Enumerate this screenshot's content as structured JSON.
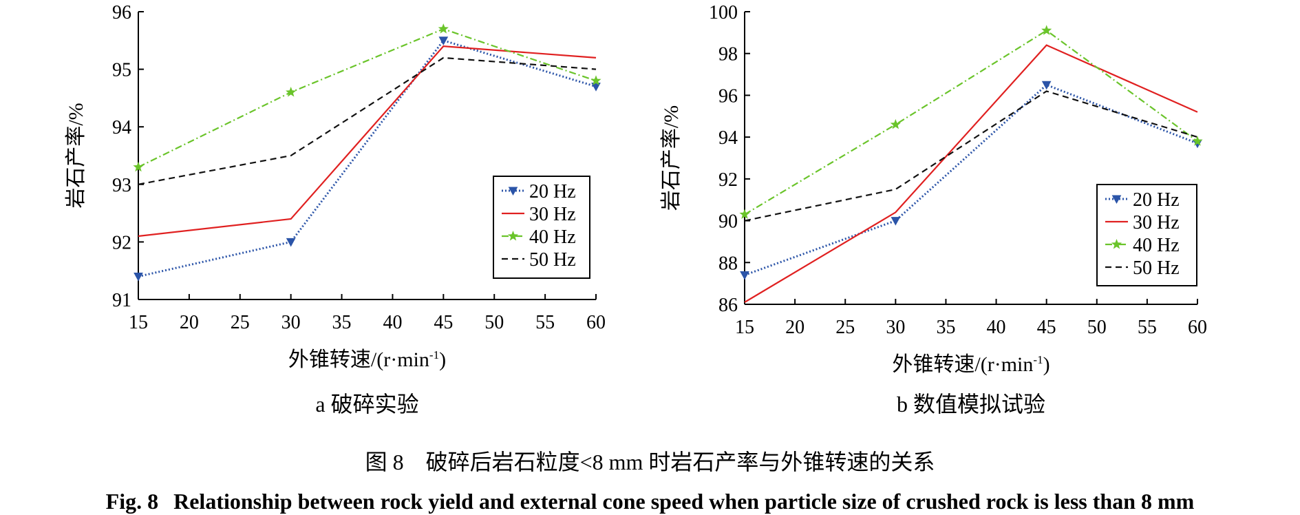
{
  "chart_data": [
    {
      "type": "line",
      "sublabel": "a  破碎实验",
      "xlabel": "外锥转速/(r·min",
      "xlabel_sup": "-1",
      "xlabel_end": ")",
      "ylabel": "岩石产率/%",
      "xlim": [
        15,
        60
      ],
      "ylim": [
        91,
        96
      ],
      "xticks": [
        15,
        20,
        25,
        30,
        35,
        40,
        45,
        50,
        55,
        60
      ],
      "yticks": [
        91,
        92,
        93,
        94,
        95,
        96
      ],
      "legend_position": "bottom-right",
      "grid": false,
      "x": [
        15,
        30,
        45,
        60
      ],
      "series": [
        {
          "name": "20 Hz",
          "color": "#2b54a8",
          "dash": "dotted",
          "marker": "triangle-down",
          "values": [
            91.4,
            92.0,
            95.5,
            94.7
          ]
        },
        {
          "name": "30 Hz",
          "color": "#e02020",
          "dash": "solid",
          "marker": "none",
          "values": [
            92.1,
            92.4,
            95.4,
            95.2
          ]
        },
        {
          "name": "40 Hz",
          "color": "#6ac42a",
          "dash": "dashdot",
          "marker": "star",
          "values": [
            93.3,
            94.6,
            95.7,
            94.8
          ]
        },
        {
          "name": "50 Hz",
          "color": "#111111",
          "dash": "dashed",
          "marker": "none",
          "values": [
            93.0,
            93.5,
            95.2,
            95.0
          ]
        }
      ]
    },
    {
      "type": "line",
      "sublabel": "b  数值模拟试验",
      "xlabel": "外锥转速/(r·min",
      "xlabel_sup": "-1",
      "xlabel_end": ")",
      "ylabel": "岩石产率/%",
      "xlim": [
        15,
        60
      ],
      "ylim": [
        86,
        100
      ],
      "xticks": [
        15,
        20,
        25,
        30,
        35,
        40,
        45,
        50,
        55,
        60
      ],
      "yticks": [
        86,
        88,
        90,
        92,
        94,
        96,
        98,
        100
      ],
      "legend_position": "bottom-right",
      "grid": false,
      "x": [
        15,
        30,
        45,
        60
      ],
      "series": [
        {
          "name": "20 Hz",
          "color": "#2b54a8",
          "dash": "dotted",
          "marker": "triangle-down",
          "values": [
            87.4,
            90.0,
            96.5,
            93.7
          ]
        },
        {
          "name": "30 Hz",
          "color": "#e02020",
          "dash": "solid",
          "marker": "none",
          "values": [
            86.1,
            90.4,
            98.4,
            95.2
          ]
        },
        {
          "name": "40 Hz",
          "color": "#6ac42a",
          "dash": "dashdot",
          "marker": "star",
          "values": [
            90.3,
            94.6,
            99.1,
            93.8
          ]
        },
        {
          "name": "50 Hz",
          "color": "#111111",
          "dash": "dashed",
          "marker": "none",
          "values": [
            90.0,
            91.5,
            96.2,
            94.0
          ]
        }
      ]
    }
  ],
  "caption": {
    "cn": "图 8　破碎后岩石粒度<8 mm 时岩石产率与外锥转速的关系",
    "en_label": "Fig. 8",
    "en_text": "Relationship between rock yield and external cone speed when particle size of crushed rock is less than 8 mm"
  }
}
